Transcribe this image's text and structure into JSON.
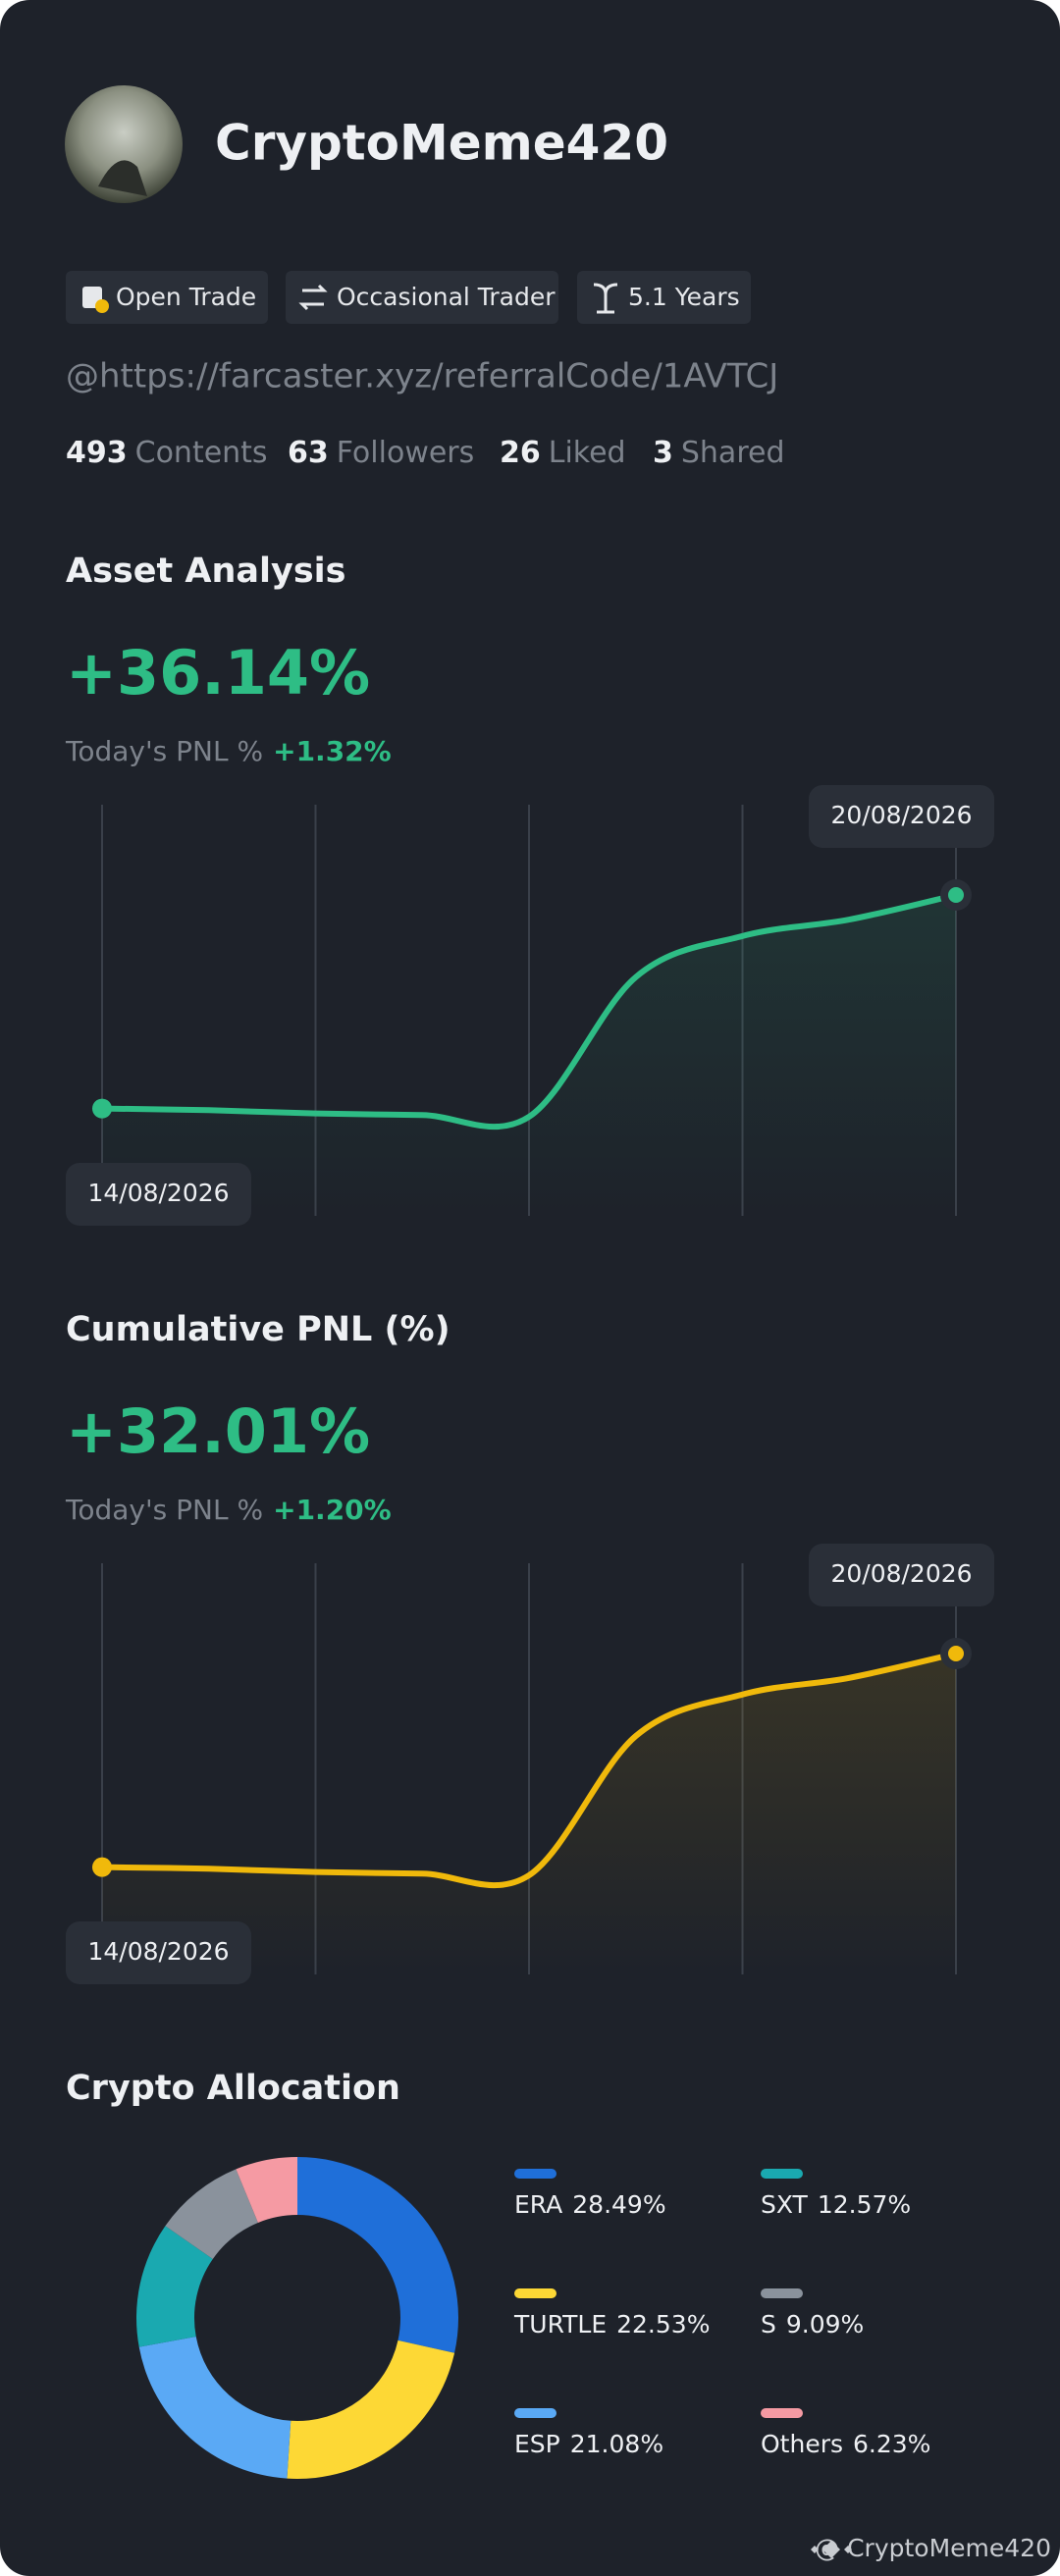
{
  "profile": {
    "username": "CryptoMeme420",
    "tags": [
      "Open Trade",
      "Occasional Trader",
      "5.1 Years"
    ],
    "referral": "@https://farcaster.xyz/referralCode/1AVTCJ",
    "stats": [
      {
        "value": 493,
        "label": "Contents"
      },
      {
        "value": 63,
        "label": "Followers"
      },
      {
        "value": 26,
        "label": "Liked"
      },
      {
        "value": 3,
        "label": "Shared"
      }
    ]
  },
  "chart_data": [
    {
      "type": "line",
      "title": "Asset Analysis",
      "headline": "+36.14%",
      "pnl_label": "Today's PNL %",
      "pnl": "+1.32%",
      "categories": [
        "14/08/2026",
        null,
        null,
        null,
        null,
        null,
        null,
        null,
        "20/08/2026"
      ],
      "values": [
        1.34,
        1.07,
        0.54,
        0.27,
        0,
        22.75,
        29.45,
        32.13,
        36.14
      ],
      "color": "#2ebd85"
    },
    {
      "type": "line",
      "title": "Cumulative PNL (%)",
      "headline": "+32.01%",
      "pnl_label": "Today's PNL %",
      "pnl": "+1.20%",
      "categories": [
        "14/08/2026",
        null,
        null,
        null,
        null,
        null,
        null,
        null,
        "20/08/2026"
      ],
      "values": [
        1.18,
        0.95,
        0.47,
        0.24,
        0,
        20.1,
        26.1,
        28.5,
        32.01
      ],
      "color": "#f0b90b"
    },
    {
      "type": "pie",
      "title": "Crypto Allocation",
      "categories": [
        "ERA",
        "TURTLE",
        "ESP",
        "SXT",
        "S",
        "Others"
      ],
      "values": [
        28.49,
        22.53,
        21.08,
        12.57,
        9.09,
        6.23
      ],
      "value_labels": [
        "28.49%",
        "22.53%",
        "21.08%",
        "12.57%",
        "9.09%",
        "6.23%"
      ],
      "colors": [
        "#1f6fd9",
        "#fdd835",
        "#5aa9f5",
        "#1aa9b0",
        "#8a929c",
        "#f59aa3"
      ]
    }
  ],
  "footer": "@ CryptoMeme420"
}
